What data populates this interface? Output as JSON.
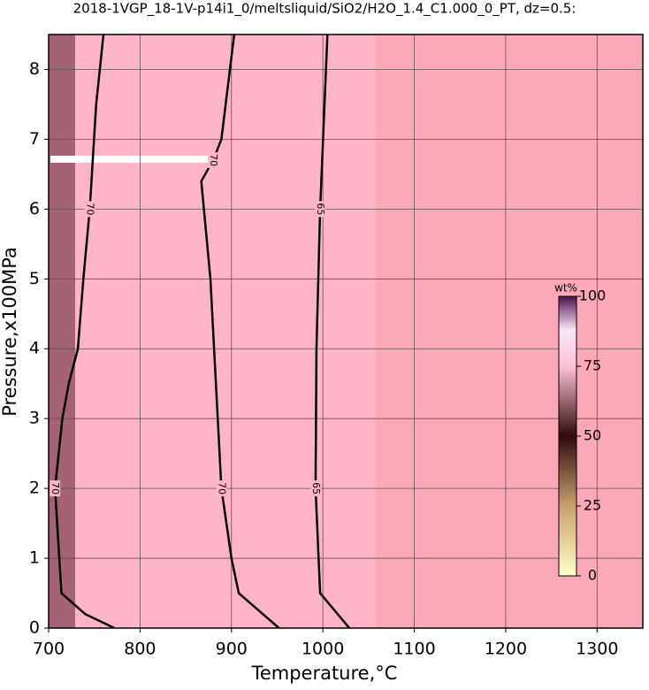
{
  "chart_data": {
    "type": "contour",
    "title": "2018-1VGP_18-1V-p14i1_0/meltsliquid/SiO2/H2O_1.4_C1.000_0_PT, dz=0.5:",
    "x_label": "Temperature,°C",
    "y_label": "Pressure,x100MPa",
    "xlim": [
      700,
      1350
    ],
    "ylim": [
      0,
      8.5
    ],
    "xticks": [
      700,
      800,
      900,
      1000,
      1100,
      1200,
      1300
    ],
    "yticks": [
      0,
      1,
      2,
      3,
      4,
      5,
      6,
      7,
      8
    ],
    "grid": true,
    "contours": [
      {
        "level": 70,
        "temperature": [
          772,
          740,
          714,
          707,
          715,
          722,
          732,
          738,
          745,
          752,
          760
        ],
        "pressure": [
          0,
          0.2,
          0.5,
          2,
          3,
          3.5,
          4,
          5,
          6,
          7.5,
          8.5
        ]
      },
      {
        "level": 70,
        "temperature": [
          952,
          908,
          900,
          889,
          885,
          881,
          877,
          867,
          880,
          889,
          903
        ],
        "pressure": [
          0,
          0.5,
          1,
          2,
          3,
          4,
          5,
          6.4,
          6.7,
          7,
          8.5
        ]
      },
      {
        "level": 65,
        "temperature": [
          1029,
          997,
          992,
          993,
          997,
          1005
        ],
        "pressure": [
          0,
          0.5,
          2,
          4,
          6,
          8.5
        ]
      }
    ],
    "colorbar": {
      "label": "wt%",
      "zlim": [
        0,
        100
      ],
      "zticks": [
        0,
        25,
        50,
        75,
        100
      ]
    }
  }
}
